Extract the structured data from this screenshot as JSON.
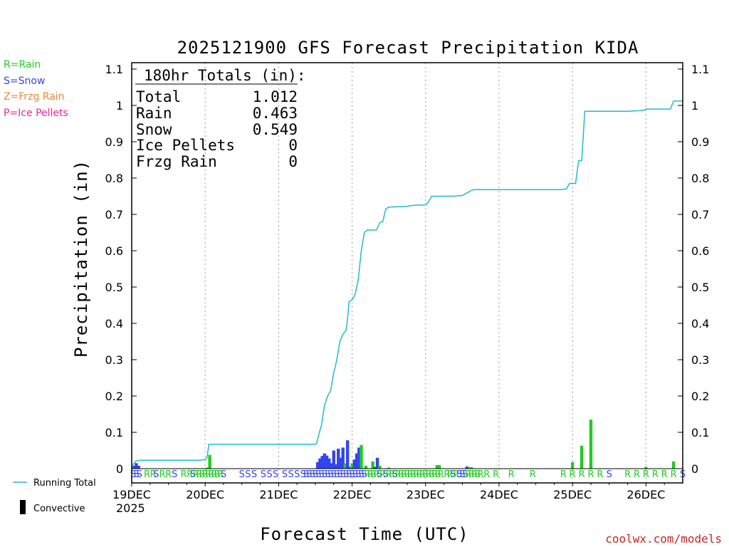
{
  "chart_data": {
    "type": "bar+line",
    "title": "2025121900 GFS Forecast Precipitation KIDA",
    "xlabel": "Forecast Time (UTC)",
    "ylabel": "Precipitation (in)",
    "ylim": [
      0,
      1.1
    ],
    "yticks": [
      0,
      0.1,
      0.2,
      0.3,
      0.4,
      0.5,
      0.6,
      0.7,
      0.8,
      0.9,
      1,
      1.1
    ],
    "ytick_labels": [
      "0",
      "0.1",
      "0.2",
      "0.3",
      "0.4",
      "0.5",
      "0.6",
      "0.7",
      "0.8",
      "0.9",
      "1",
      "1.1"
    ],
    "xlim_hours": [
      0,
      180
    ],
    "xticks": [
      {
        "hour": 0,
        "label": "19DEC"
      },
      {
        "hour": 24,
        "label": "20DEC"
      },
      {
        "hour": 48,
        "label": "21DEC"
      },
      {
        "hour": 72,
        "label": "22DEC"
      },
      {
        "hour": 96,
        "label": "23DEC"
      },
      {
        "hour": 120,
        "label": "24DEC"
      },
      {
        "hour": 144,
        "label": "25DEC"
      },
      {
        "hour": 168,
        "label": "26DEC"
      }
    ],
    "year_label": "2025",
    "legend": {
      "rain": {
        "label": "R=Rain",
        "color": "#22cc22"
      },
      "snow": {
        "label": "S=Snow",
        "color": "#3344ee"
      },
      "frzg": {
        "label": "Z=Frzg Rain",
        "color": "#ee8833"
      },
      "ice": {
        "label": "P=Ice Pellets",
        "color": "#ee2299"
      }
    },
    "totals_box": {
      "heading": "180hr Totals (in):",
      "rows": [
        {
          "label": "Total",
          "value": "1.012"
        },
        {
          "label": "Rain",
          "value": "0.463"
        },
        {
          "label": "Snow",
          "value": "0.549"
        },
        {
          "label": "Ice Pellets",
          "value": "0"
        },
        {
          "label": "Frzg Rain",
          "value": "0"
        }
      ]
    },
    "running_total": {
      "label": "Running Total",
      "color": "#22bbcc",
      "points": [
        [
          0,
          0
        ],
        [
          0.5,
          0.012
        ],
        [
          1.5,
          0.022
        ],
        [
          3,
          0.023
        ],
        [
          22,
          0.023
        ],
        [
          24,
          0.025
        ],
        [
          24.6,
          0.03
        ],
        [
          25.2,
          0.067
        ],
        [
          60,
          0.067
        ],
        [
          60.4,
          0.069
        ],
        [
          61,
          0.09
        ],
        [
          62,
          0.12
        ],
        [
          63,
          0.175
        ],
        [
          64,
          0.2
        ],
        [
          65,
          0.215
        ],
        [
          66,
          0.265
        ],
        [
          66.5,
          0.28
        ],
        [
          67,
          0.3
        ],
        [
          68,
          0.35
        ],
        [
          69,
          0.37
        ],
        [
          70,
          0.38
        ],
        [
          70.5,
          0.41
        ],
        [
          71,
          0.46
        ],
        [
          72,
          0.465
        ],
        [
          73,
          0.48
        ],
        [
          74,
          0.52
        ],
        [
          75,
          0.6
        ],
        [
          76,
          0.65
        ],
        [
          77,
          0.657
        ],
        [
          80,
          0.657
        ],
        [
          81,
          0.677
        ],
        [
          82,
          0.68
        ],
        [
          83,
          0.715
        ],
        [
          84,
          0.72
        ],
        [
          90,
          0.722
        ],
        [
          92,
          0.725
        ],
        [
          96,
          0.726
        ],
        [
          97,
          0.735
        ],
        [
          98,
          0.75
        ],
        [
          105,
          0.75
        ],
        [
          108,
          0.752
        ],
        [
          111,
          0.766
        ],
        [
          112,
          0.768
        ],
        [
          140,
          0.768
        ],
        [
          142,
          0.77
        ],
        [
          143,
          0.785
        ],
        [
          145,
          0.785
        ],
        [
          146,
          0.848
        ],
        [
          147,
          0.848
        ],
        [
          148,
          0.984
        ],
        [
          162,
          0.984
        ],
        [
          164,
          0.985
        ],
        [
          167,
          0.986
        ],
        [
          168,
          0.99
        ],
        [
          176,
          0.99
        ],
        [
          177,
          1.012
        ],
        [
          180,
          1.012
        ]
      ]
    },
    "convective": {
      "label": "Convective",
      "color": "#000000"
    },
    "bars": [
      {
        "h": 0.75,
        "v": 0.008,
        "p": "S"
      },
      {
        "h": 1.5,
        "v": 0.015,
        "p": "S"
      },
      {
        "h": 2.25,
        "v": 0.008,
        "p": "S"
      },
      {
        "h": 24.75,
        "v": 0.003,
        "p": "R"
      },
      {
        "h": 25.5,
        "v": 0.038,
        "p": "R"
      },
      {
        "h": 60.75,
        "v": 0.018,
        "p": "S"
      },
      {
        "h": 61.5,
        "v": 0.028,
        "p": "S"
      },
      {
        "h": 62.25,
        "v": 0.035,
        "p": "S"
      },
      {
        "h": 63,
        "v": 0.042,
        "p": "S"
      },
      {
        "h": 63.75,
        "v": 0.036,
        "p": "S"
      },
      {
        "h": 64.5,
        "v": 0.028,
        "p": "S"
      },
      {
        "h": 65.25,
        "v": 0.015,
        "p": "S"
      },
      {
        "h": 66,
        "v": 0.05,
        "p": "S"
      },
      {
        "h": 66.75,
        "v": 0.012,
        "p": "S"
      },
      {
        "h": 67.5,
        "v": 0.055,
        "p": "S"
      },
      {
        "h": 68.25,
        "v": 0.03,
        "p": "S"
      },
      {
        "h": 69,
        "v": 0.058,
        "p": "S"
      },
      {
        "h": 69.75,
        "v": 0.015,
        "p": "R"
      },
      {
        "h": 70.5,
        "v": 0.078,
        "p": "S"
      },
      {
        "h": 71.25,
        "v": 0.005,
        "p": "S"
      },
      {
        "h": 72,
        "v": 0.015,
        "p": "R"
      },
      {
        "h": 72.75,
        "v": 0.025,
        "p": "S"
      },
      {
        "h": 73.5,
        "v": 0.042,
        "p": "S"
      },
      {
        "h": 74.25,
        "v": 0.058,
        "p": "S"
      },
      {
        "h": 75,
        "v": 0.065,
        "p": "R"
      },
      {
        "h": 76.5,
        "v": 0.008,
        "p": "R"
      },
      {
        "h": 78.75,
        "v": 0.02,
        "p": "R"
      },
      {
        "h": 79.5,
        "v": 0.005,
        "p": "S"
      },
      {
        "h": 80.25,
        "v": 0.03,
        "p": "S"
      },
      {
        "h": 81,
        "v": 0.008,
        "p": "R"
      },
      {
        "h": 84,
        "v": 0.003,
        "p": "R"
      },
      {
        "h": 99.75,
        "v": 0.01,
        "p": "R"
      },
      {
        "h": 100.5,
        "v": 0.01,
        "p": "R"
      },
      {
        "h": 109.5,
        "v": 0.006,
        "p": "S"
      },
      {
        "h": 110.25,
        "v": 0.004,
        "p": "R"
      },
      {
        "h": 111,
        "v": 0.004,
        "p": "R"
      },
      {
        "h": 144,
        "v": 0.018,
        "p": "R"
      },
      {
        "h": 147,
        "v": 0.063,
        "p": "R"
      },
      {
        "h": 150,
        "v": 0.135,
        "p": "R"
      },
      {
        "h": 168,
        "v": 0.005,
        "p": "R"
      },
      {
        "h": 177,
        "v": 0.02,
        "p": "R"
      }
    ],
    "ptype_strip": [
      {
        "h": 0.5,
        "c": "S"
      },
      {
        "h": 1.5,
        "c": "S"
      },
      {
        "h": 2.5,
        "c": "S"
      },
      {
        "h": 5,
        "c": "R"
      },
      {
        "h": 7,
        "c": "R"
      },
      {
        "h": 8,
        "c": "S"
      },
      {
        "h": 10,
        "c": "R"
      },
      {
        "h": 12,
        "c": "R"
      },
      {
        "h": 14,
        "c": "S"
      },
      {
        "h": 17,
        "c": "R"
      },
      {
        "h": 19,
        "c": "R"
      },
      {
        "h": 20,
        "c": "S"
      },
      {
        "h": 21,
        "c": "R"
      },
      {
        "h": 22,
        "c": "R"
      },
      {
        "h": 23,
        "c": "R"
      },
      {
        "h": 24,
        "c": "R"
      },
      {
        "h": 25,
        "c": "R"
      },
      {
        "h": 26,
        "c": "R"
      },
      {
        "h": 27,
        "c": "R"
      },
      {
        "h": 28,
        "c": "R"
      },
      {
        "h": 29,
        "c": "R"
      },
      {
        "h": 30,
        "c": "S"
      },
      {
        "h": 36,
        "c": "S"
      },
      {
        "h": 38,
        "c": "S"
      },
      {
        "h": 40,
        "c": "S"
      },
      {
        "h": 43,
        "c": "S"
      },
      {
        "h": 45,
        "c": "S"
      },
      {
        "h": 47,
        "c": "S"
      },
      {
        "h": 50,
        "c": "S"
      },
      {
        "h": 52,
        "c": "S"
      },
      {
        "h": 54,
        "c": "S"
      },
      {
        "h": 56,
        "c": "S"
      },
      {
        "h": 57,
        "c": "S"
      },
      {
        "h": 58,
        "c": "S"
      },
      {
        "h": 59,
        "c": "S"
      },
      {
        "h": 60,
        "c": "S"
      },
      {
        "h": 61,
        "c": "S"
      },
      {
        "h": 62,
        "c": "S"
      },
      {
        "h": 63,
        "c": "S"
      },
      {
        "h": 64,
        "c": "S"
      },
      {
        "h": 65,
        "c": "S"
      },
      {
        "h": 66,
        "c": "S"
      },
      {
        "h": 67,
        "c": "S"
      },
      {
        "h": 68,
        "c": "S"
      },
      {
        "h": 69,
        "c": "S"
      },
      {
        "h": 70,
        "c": "S"
      },
      {
        "h": 71,
        "c": "S"
      },
      {
        "h": 72,
        "c": "S"
      },
      {
        "h": 73,
        "c": "S"
      },
      {
        "h": 74,
        "c": "S"
      },
      {
        "h": 75,
        "c": "S"
      },
      {
        "h": 76,
        "c": "S"
      },
      {
        "h": 77,
        "c": "R"
      },
      {
        "h": 78,
        "c": "R"
      },
      {
        "h": 79,
        "c": "R"
      },
      {
        "h": 80,
        "c": "R"
      },
      {
        "h": 81,
        "c": "S"
      },
      {
        "h": 82,
        "c": "R"
      },
      {
        "h": 83,
        "c": "S"
      },
      {
        "h": 84,
        "c": "R"
      },
      {
        "h": 85,
        "c": "R"
      },
      {
        "h": 86,
        "c": "S"
      },
      {
        "h": 87,
        "c": "R"
      },
      {
        "h": 88,
        "c": "R"
      },
      {
        "h": 89,
        "c": "R"
      },
      {
        "h": 90,
        "c": "R"
      },
      {
        "h": 91,
        "c": "R"
      },
      {
        "h": 92,
        "c": "R"
      },
      {
        "h": 93,
        "c": "R"
      },
      {
        "h": 94,
        "c": "R"
      },
      {
        "h": 95,
        "c": "R"
      },
      {
        "h": 96,
        "c": "R"
      },
      {
        "h": 97,
        "c": "R"
      },
      {
        "h": 98,
        "c": "R"
      },
      {
        "h": 99,
        "c": "R"
      },
      {
        "h": 100,
        "c": "R"
      },
      {
        "h": 101,
        "c": "R"
      },
      {
        "h": 103,
        "c": "R"
      },
      {
        "h": 104,
        "c": "R"
      },
      {
        "h": 105,
        "c": "S"
      },
      {
        "h": 106,
        "c": "R"
      },
      {
        "h": 107,
        "c": "S"
      },
      {
        "h": 108,
        "c": "S"
      },
      {
        "h": 109,
        "c": "S"
      },
      {
        "h": 110,
        "c": "R"
      },
      {
        "h": 111,
        "c": "R"
      },
      {
        "h": 112,
        "c": "R"
      },
      {
        "h": 113,
        "c": "R"
      },
      {
        "h": 114,
        "c": "R"
      },
      {
        "h": 116,
        "c": "R"
      },
      {
        "h": 119,
        "c": "R"
      },
      {
        "h": 124,
        "c": "R"
      },
      {
        "h": 131,
        "c": "R"
      },
      {
        "h": 141,
        "c": "R"
      },
      {
        "h": 144,
        "c": "R"
      },
      {
        "h": 147,
        "c": "R"
      },
      {
        "h": 150,
        "c": "R"
      },
      {
        "h": 153,
        "c": "R"
      },
      {
        "h": 156,
        "c": "S"
      },
      {
        "h": 162,
        "c": "R"
      },
      {
        "h": 165,
        "c": "R"
      },
      {
        "h": 168,
        "c": "R"
      },
      {
        "h": 171,
        "c": "R"
      },
      {
        "h": 174,
        "c": "R"
      },
      {
        "h": 177,
        "c": "R"
      },
      {
        "h": 180,
        "c": "S"
      }
    ]
  },
  "footer": {
    "credit": "coolwx.com/models"
  }
}
